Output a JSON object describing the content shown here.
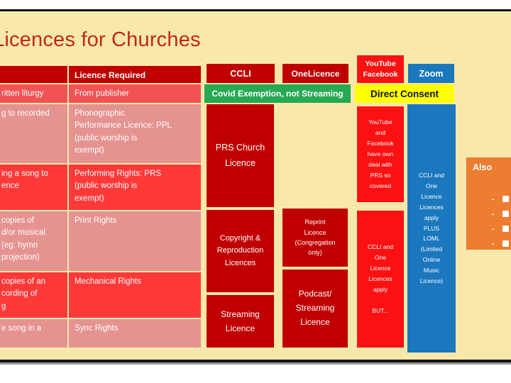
{
  "slide": {
    "title": "Licences for Churches",
    "colors": {
      "background": "#F9E8AB",
      "dark_red": "#C00000",
      "bright_red": "#FB1111",
      "coral_row": "#F15353",
      "dusty_row": "#E59390",
      "bright_row": "#FF3838",
      "blue": "#1B78BE",
      "green": "#27A853",
      "yellow": "#FFFF00",
      "orange": "#ED7D31",
      "title_red": "#C2261A"
    }
  },
  "table": {
    "header": {
      "activity": "",
      "licence": "Licence Required"
    },
    "rows": [
      {
        "activity": "ritten liturgy",
        "licence": "From publisher"
      },
      {
        "activity": "g to recorded",
        "licence": "Phonographic\nPerformance Licence: PPL\n(public worship is\nexempt)"
      },
      {
        "activity": "ing a song to\nence",
        "licence": "Performing Rights: PRS\n(public worship is\nexempt)"
      },
      {
        "activity": "copies of\nd/or musical\n(eg: hymn\nprojection)",
        "licence": "Print Rights"
      },
      {
        "activity": "copies of an\ncording of\ng",
        "licence": "Mechanical Rights"
      },
      {
        "activity": "e song in a",
        "licence": "Sync Rights"
      }
    ]
  },
  "banners": {
    "covid": "Covid Exemption, not Streaming",
    "direct_consent": "Direct Consent"
  },
  "columns": {
    "ccli": {
      "header": "CCLI",
      "box_prs": "PRS Church\nLicence",
      "box_copyright": "Copyright &\nReproduction\nLicences",
      "box_streaming": "Streaming\nLicence"
    },
    "onelicence": {
      "header": "OneLicence",
      "box_reprint": "Reprint\nLicence\n(Congregation\nonly)",
      "box_podcast": "Podcast/\nStreaming\nLicence"
    },
    "youtube_facebook": {
      "header": "YouTube\nFacebook",
      "box_deal": "YouTube\nand\nFacebook\nhave own\ndeal with\nPRS so\ncovered",
      "box_apply": "CCLI and\nOne\nLicence\nLicences\napply\n\nBUT..."
    },
    "zoom": {
      "header": "Zoom",
      "box_apply": "CCLI and\nOne\nLicence\nLicences\napply\nPLUS\nLOML\n(Limited\nOnline\nMusic\nLicence)"
    }
  },
  "also": {
    "title": "Also",
    "bullets": [
      "-",
      "-",
      "-",
      "-"
    ]
  }
}
